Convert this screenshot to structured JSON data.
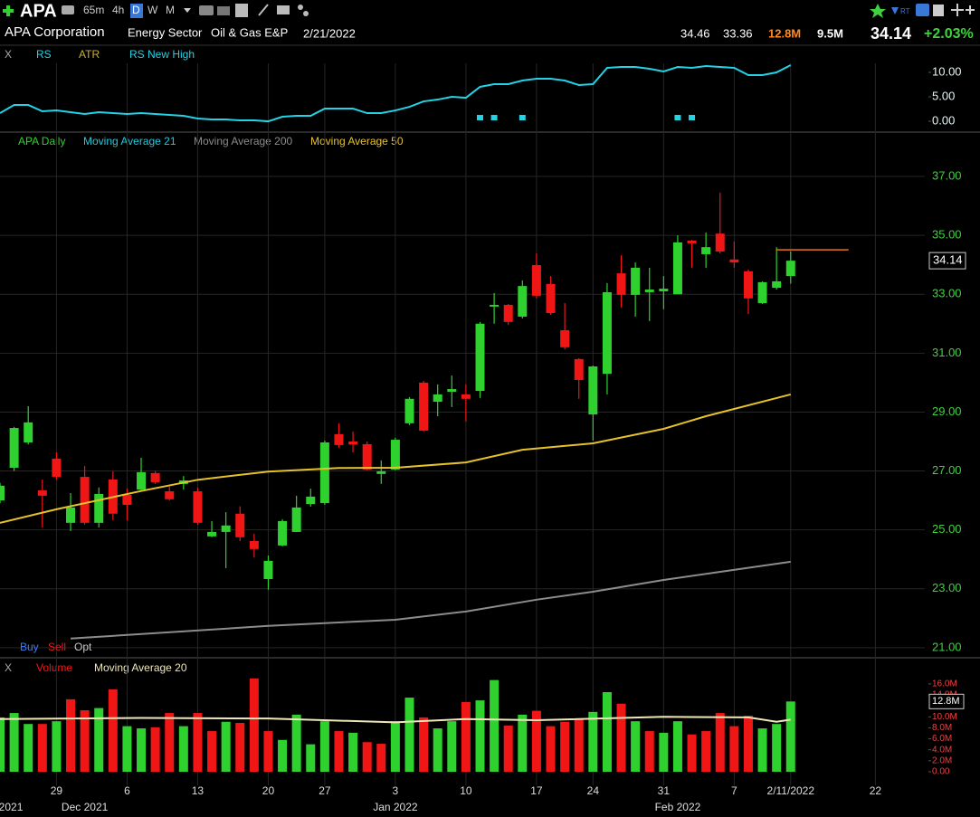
{
  "header": {
    "ticker": "APA",
    "timeframes": [
      "65m",
      "4h",
      "D",
      "W",
      "M"
    ],
    "company": "APA Corporation",
    "sector": "Energy Sector",
    "industry": "Oil & Gas E&P",
    "date": "2/21/2022",
    "high": "34.46",
    "low": "33.36",
    "volume": "12.8M",
    "avg_volume": "9.5M",
    "last": "34.14",
    "change": "+2.03%",
    "rt": "RT"
  },
  "chart_data": [
    {
      "type": "line",
      "close_button": "X",
      "series": [
        {
          "name": "RS",
          "color": "#22d3e6",
          "values": [
            1.67,
            3.33,
            3.33,
            2.04,
            2.22,
            1.85,
            1.48,
            1.85,
            1.67,
            1.48,
            1.67,
            1.48,
            1.3,
            1.11,
            0.56,
            0.37,
            0.37,
            0.19,
            0.19,
            0,
            0.93,
            1.11,
            1.11,
            2.59,
            2.59,
            2.59,
            1.67,
            1.67,
            2.22,
            2.96,
            4.07,
            4.44,
            5.0,
            4.81,
            7.04,
            7.59,
            7.59,
            8.33,
            8.7,
            8.7,
            8.33,
            7.41,
            7.59,
            10.93,
            11.11,
            11.11,
            10.74,
            10.19,
            11.11,
            10.93,
            11.3,
            11.11,
            10.93,
            9.44,
            9.44,
            10.0,
            11.48
          ]
        },
        {
          "name": "ATR",
          "color": "#c9b22e"
        },
        {
          "name": "RS New High",
          "color": "#22d3e6",
          "x": [
            34,
            35,
            37,
            48,
            49
          ]
        }
      ],
      "ylim": [
        -1.1,
        11.85
      ],
      "yticks": [
        {
          "value": 10,
          "label": "10.00"
        },
        {
          "value": 5,
          "label": "5.00"
        },
        {
          "value": 0,
          "label": "0.00"
        }
      ],
      "axis_color": "#e6f4f6"
    },
    {
      "type": "candlestick",
      "series": [
        {
          "name": "APA Daily",
          "color": "#2ed12e",
          "up_color": "#2ed12e",
          "down_color": "#f01616",
          "open": [
            26.0,
            27.11,
            27.97,
            26.34,
            27.42,
            25.24,
            26.8,
            25.24,
            26.71,
            26.19,
            26.37,
            26.93,
            26.31,
            26.56,
            26.31,
            24.78,
            24.93,
            25.55,
            24.62,
            23.33,
            24.47,
            24.93,
            25.88,
            25.91,
            28.25,
            28.0,
            27.91,
            26.9,
            27.05,
            28.62,
            30.0,
            29.35,
            29.69,
            29.6,
            29.72,
            32.58,
            32.64,
            32.24,
            33.99,
            33.35,
            31.78,
            30.8,
            28.92,
            30.3,
            33.71,
            32.98,
            33.07,
            33.1,
            33.0,
            34.82,
            34.36,
            35.06,
            34.18,
            33.78,
            32.7,
            33.22,
            33.62
          ],
          "high": [
            26.6,
            28.5,
            29.2,
            26.71,
            27.63,
            26.25,
            27.17,
            26.44,
            26.99,
            26.4,
            27.45,
            27.0,
            26.47,
            26.83,
            26.44,
            25.3,
            25.6,
            25.8,
            24.87,
            24.13,
            25.36,
            26.16,
            26.4,
            28.03,
            28.62,
            28.34,
            28.0,
            27.36,
            28.13,
            29.51,
            30.06,
            29.94,
            30.24,
            29.94,
            32.06,
            33.04,
            32.67,
            33.47,
            34.39,
            33.62,
            32.7,
            30.83,
            30.58,
            33.38,
            34.33,
            34.08,
            33.9,
            33.62,
            35.0,
            34.85,
            35.1,
            36.45,
            34.79,
            33.84,
            33.44,
            34.6,
            34.46
          ],
          "low": [
            25.9,
            27.0,
            27.9,
            25.08,
            26.7,
            24.96,
            25.18,
            25.08,
            25.33,
            25.33,
            26.3,
            26.56,
            26.0,
            26.37,
            25.18,
            24.75,
            23.7,
            24.62,
            24.07,
            22.97,
            24.44,
            24.93,
            25.79,
            25.85,
            27.79,
            27.63,
            27.02,
            26.56,
            27.02,
            28.56,
            28.34,
            28.86,
            29.17,
            28.68,
            29.48,
            32.0,
            31.96,
            32.18,
            32.86,
            32.3,
            31.13,
            29.45,
            28.03,
            29.6,
            32.55,
            32.24,
            32.09,
            32.49,
            33.0,
            33.9,
            33.9,
            34.39,
            33.9,
            32.33,
            32.67,
            33.16,
            33.36
          ],
          "close": [
            26.5,
            28.46,
            28.65,
            26.16,
            26.8,
            25.76,
            25.24,
            26.22,
            25.55,
            25.85,
            26.96,
            26.62,
            26.04,
            26.68,
            25.24,
            24.93,
            25.15,
            24.75,
            24.35,
            23.95,
            25.3,
            25.76,
            26.13,
            27.97,
            27.88,
            27.9,
            27.05,
            26.99,
            28.06,
            29.45,
            28.37,
            29.6,
            29.78,
            29.45,
            32.0,
            32.64,
            32.06,
            33.28,
            32.95,
            32.36,
            31.2,
            30.09,
            30.55,
            33.07,
            32.98,
            33.9,
            33.16,
            33.19,
            34.76,
            34.73,
            34.6,
            34.45,
            34.08,
            32.86,
            33.41,
            33.44,
            34.14
          ]
        },
        {
          "name": "Moving Average 21",
          "color": "#22c8dc"
        },
        {
          "name": "Moving Average 200",
          "color": "#8c8c8c",
          "x": [
            5,
            19,
            28,
            33,
            38,
            42,
            47,
            56
          ],
          "values": [
            21.31,
            21.74,
            21.95,
            22.23,
            22.63,
            22.9,
            23.3,
            23.92
          ]
        },
        {
          "name": "Moving Average 50",
          "color": "#e6c229",
          "x": [
            0,
            4,
            10,
            14,
            19,
            24,
            28,
            33,
            37,
            42,
            47,
            50,
            56
          ],
          "values": [
            25.24,
            25.7,
            26.32,
            26.7,
            26.98,
            27.1,
            27.11,
            27.29,
            27.72,
            27.94,
            28.43,
            28.86,
            29.6
          ]
        }
      ],
      "hline": {
        "value": 34.51,
        "color": "#e8731a",
        "x": [
          55,
          60.1
        ]
      },
      "order_buttons": [
        {
          "label": "Buy",
          "color": "#3b7cff"
        },
        {
          "label": "Sell",
          "color": "#f01616"
        },
        {
          "label": "Opt",
          "color": "#c8c8c8"
        }
      ],
      "ylim": [
        20.72,
        37.83
      ],
      "yticks": [
        {
          "value": 37,
          "label": "37.00"
        },
        {
          "value": 35,
          "label": "35.00"
        },
        {
          "value": 33,
          "label": "33.00"
        },
        {
          "value": 31,
          "label": "31.00"
        },
        {
          "value": 29,
          "label": "29.00"
        },
        {
          "value": 27,
          "label": "27.00"
        },
        {
          "value": 25,
          "label": "25.00"
        },
        {
          "value": 23,
          "label": "23.00"
        },
        {
          "value": 21,
          "label": "21.00"
        }
      ],
      "axis_color": "#3fd13f",
      "grid": true
    },
    {
      "type": "bar",
      "close_button": "X",
      "x": [
        0,
        1,
        2,
        3,
        4,
        5,
        6,
        7,
        8,
        9,
        10,
        11,
        12,
        13,
        14,
        15,
        16,
        17,
        18,
        19,
        20,
        21,
        22,
        23,
        24,
        25,
        26,
        27,
        28,
        29,
        30,
        31,
        32,
        33,
        34,
        35,
        36,
        37,
        38,
        39,
        40,
        41,
        42,
        43,
        44,
        45,
        46,
        47,
        48,
        49,
        50,
        51,
        52,
        53,
        54,
        55,
        56
      ],
      "series": [
        {
          "name": "Volume",
          "color": "#f01616",
          "up_color": "#2ed12e",
          "down_color": "#f01616",
          "values": [
            9.9,
            10.7,
            8.7,
            8.7,
            9.2,
            13.2,
            11.2,
            11.6,
            15.0,
            8.3,
            7.9,
            8.1,
            10.7,
            8.3,
            10.7,
            7.4,
            9.1,
            8.9,
            17.0,
            7.4,
            5.8,
            10.4,
            5.0,
            9.2,
            7.4,
            7.1,
            5.4,
            5.1,
            9.2,
            13.5,
            9.9,
            7.9,
            9.2,
            12.7,
            13.0,
            16.7,
            8.4,
            10.4,
            11.1,
            8.3,
            9.1,
            9.7,
            10.9,
            14.5,
            12.4,
            9.2,
            7.4,
            7.1,
            9.2,
            6.8,
            7.4,
            10.7,
            8.3,
            10.2,
            7.9,
            8.7,
            12.8
          ]
        },
        {
          "name": "Moving Average 20",
          "color": "#efe7b8",
          "x": [
            0,
            10,
            19,
            28,
            33,
            38,
            47,
            53,
            55,
            56
          ],
          "values": [
            9.6,
            9.8,
            9.7,
            9.0,
            9.6,
            9.4,
            10.0,
            9.9,
            9.1,
            9.5
          ]
        }
      ],
      "ylim": [
        0,
        17.3
      ],
      "yticks": [
        {
          "value": 16,
          "label": "16.0M"
        },
        {
          "value": 14,
          "label": "14.0M"
        },
        {
          "value": 10,
          "label": "10.0M"
        },
        {
          "value": 8,
          "label": "8.0M"
        },
        {
          "value": 6,
          "label": "6.0M"
        },
        {
          "value": 4,
          "label": "4.0M"
        },
        {
          "value": 2,
          "label": "2.0M"
        },
        {
          "value": 0,
          "label": "0.00"
        }
      ],
      "axis_color": "#f04040",
      "xlim": [
        0,
        65.5
      ],
      "xticks": [
        {
          "value": 4,
          "label": "29"
        },
        {
          "value": 9,
          "label": "6"
        },
        {
          "value": 14,
          "label": "13"
        },
        {
          "value": 19,
          "label": "20"
        },
        {
          "value": 23,
          "label": "27"
        },
        {
          "value": 28,
          "label": "3"
        },
        {
          "value": 33,
          "label": "10"
        },
        {
          "value": 38,
          "label": "17"
        },
        {
          "value": 42,
          "label": "24"
        },
        {
          "value": 47,
          "label": "31"
        },
        {
          "value": 52,
          "label": "7"
        },
        {
          "value": 56,
          "label": "2/11/2022"
        },
        {
          "value": 62,
          "label": "22"
        }
      ],
      "x_month_ticks": [
        {
          "value": 0.77,
          "label": "2021"
        },
        {
          "value": 6,
          "label": "Dec 2021"
        },
        {
          "value": 28,
          "label": "Jan 2022"
        },
        {
          "value": 48,
          "label": "Feb 2022"
        }
      ]
    }
  ]
}
